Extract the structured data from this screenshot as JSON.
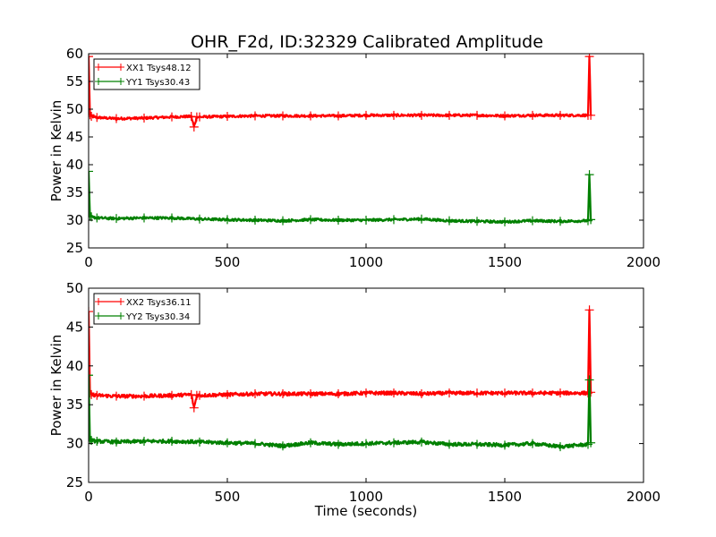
{
  "title": "OHR_F2d, ID:32329 Calibrated Amplitude",
  "chart_data": [
    {
      "type": "line",
      "ylabel": "Power in Kelvin",
      "xlabel": "",
      "xlim": [
        0,
        2000
      ],
      "ylim": [
        25,
        60
      ],
      "xticks": [
        0,
        500,
        1000,
        1500,
        2000
      ],
      "yticks": [
        25,
        30,
        35,
        40,
        45,
        50,
        55,
        60
      ],
      "grid": false,
      "legend_position": "top-left",
      "series": [
        {
          "name": "XX1 Tsys48.12",
          "color": "#ff0000",
          "marker": "+",
          "x": [
            0,
            5,
            10,
            30,
            100,
            200,
            300,
            370,
            380,
            390,
            400,
            500,
            600,
            700,
            800,
            900,
            1000,
            1100,
            1200,
            1300,
            1400,
            1500,
            1600,
            1700,
            1800,
            1805,
            1810
          ],
          "y": [
            59.5,
            49.0,
            48.7,
            48.5,
            48.3,
            48.4,
            48.6,
            48.7,
            46.8,
            48.6,
            48.6,
            48.7,
            48.8,
            48.8,
            48.8,
            48.8,
            48.9,
            48.9,
            48.9,
            48.9,
            48.9,
            48.8,
            48.9,
            48.9,
            48.9,
            59.5,
            48.9
          ]
        },
        {
          "name": "YY1 Tsys30.43",
          "color": "#008000",
          "marker": "+",
          "x": [
            0,
            5,
            10,
            30,
            100,
            200,
            300,
            400,
            500,
            600,
            700,
            800,
            900,
            1000,
            1100,
            1200,
            1300,
            1400,
            1500,
            1600,
            1700,
            1800,
            1805,
            1810
          ],
          "y": [
            38.8,
            30.7,
            30.6,
            30.4,
            30.3,
            30.4,
            30.4,
            30.2,
            30.1,
            30.0,
            29.9,
            30.1,
            30.0,
            30.0,
            30.1,
            30.2,
            29.9,
            29.8,
            29.7,
            29.9,
            29.8,
            29.9,
            38.2,
            30.1
          ]
        }
      ]
    },
    {
      "type": "line",
      "ylabel": "Power in Kelvin",
      "xlabel": "Time (seconds)",
      "xlim": [
        0,
        2000
      ],
      "ylim": [
        25,
        50
      ],
      "xticks": [
        0,
        500,
        1000,
        1500,
        2000
      ],
      "yticks": [
        25,
        30,
        35,
        40,
        45,
        50
      ],
      "grid": false,
      "legend_position": "top-left",
      "series": [
        {
          "name": "XX2 Tsys36.11",
          "color": "#ff0000",
          "marker": "+",
          "x": [
            0,
            5,
            10,
            30,
            100,
            200,
            300,
            370,
            380,
            390,
            400,
            500,
            600,
            700,
            800,
            900,
            1000,
            1100,
            1200,
            1300,
            1400,
            1500,
            1600,
            1700,
            1800,
            1805,
            1810
          ],
          "y": [
            47.0,
            36.5,
            36.3,
            36.2,
            36.1,
            36.1,
            36.2,
            36.3,
            34.6,
            36.2,
            36.2,
            36.3,
            36.4,
            36.4,
            36.4,
            36.4,
            36.5,
            36.5,
            36.4,
            36.5,
            36.5,
            36.5,
            36.5,
            36.5,
            36.5,
            47.2,
            36.6
          ]
        },
        {
          "name": "YY2 Tsys30.34",
          "color": "#008000",
          "marker": "+",
          "x": [
            0,
            5,
            10,
            30,
            100,
            200,
            300,
            400,
            500,
            600,
            700,
            800,
            900,
            1000,
            1100,
            1200,
            1300,
            1400,
            1500,
            1600,
            1700,
            1800,
            1805,
            1810
          ],
          "y": [
            38.8,
            30.5,
            30.4,
            30.3,
            30.2,
            30.3,
            30.3,
            30.2,
            30.1,
            30.0,
            29.7,
            30.1,
            29.9,
            30.0,
            30.1,
            30.2,
            29.9,
            29.9,
            29.8,
            30.0,
            29.6,
            29.9,
            38.2,
            30.1
          ]
        }
      ]
    }
  ]
}
